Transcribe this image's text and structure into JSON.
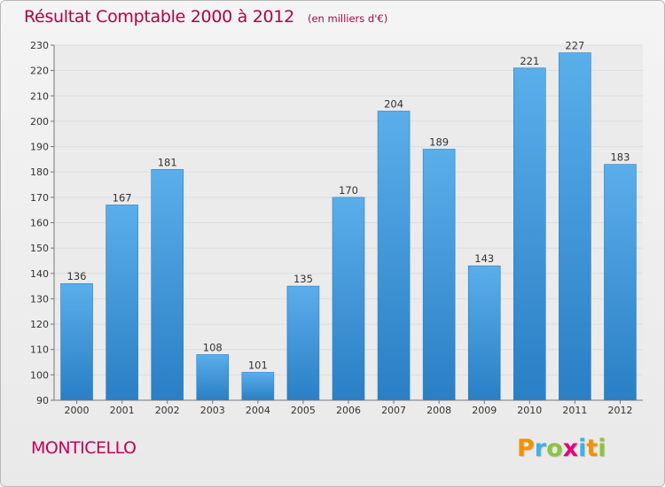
{
  "header": {
    "title": "Résultat Comptable 2000 à 2012",
    "unit": "(en milliers d'€)"
  },
  "place": "MONTICELLO",
  "brand": {
    "letters": [
      "P",
      "r",
      "o",
      "x",
      "i",
      "t",
      "i"
    ],
    "colors": [
      "#f39200",
      "#3bb2e4",
      "#8bc53f",
      "#e4007d",
      "#3bb2e4",
      "#f39200",
      "#8bc53f"
    ]
  },
  "colors": {
    "title": "#b30045",
    "bar_light": "#5aaeea",
    "bar_dark": "#2a7fc5",
    "grid": "#dddddd"
  },
  "chart_data": {
    "type": "bar",
    "categories": [
      "2000",
      "2001",
      "2002",
      "2003",
      "2004",
      "2005",
      "2006",
      "2007",
      "2008",
      "2009",
      "2010",
      "2011",
      "2012"
    ],
    "values": [
      136,
      167,
      181,
      108,
      101,
      135,
      170,
      204,
      189,
      143,
      221,
      227,
      183
    ],
    "ylim": [
      90,
      230
    ],
    "yticks": [
      90,
      100,
      110,
      120,
      130,
      140,
      150,
      160,
      170,
      180,
      190,
      200,
      210,
      220,
      230
    ],
    "grid": true,
    "data_labels": true
  }
}
